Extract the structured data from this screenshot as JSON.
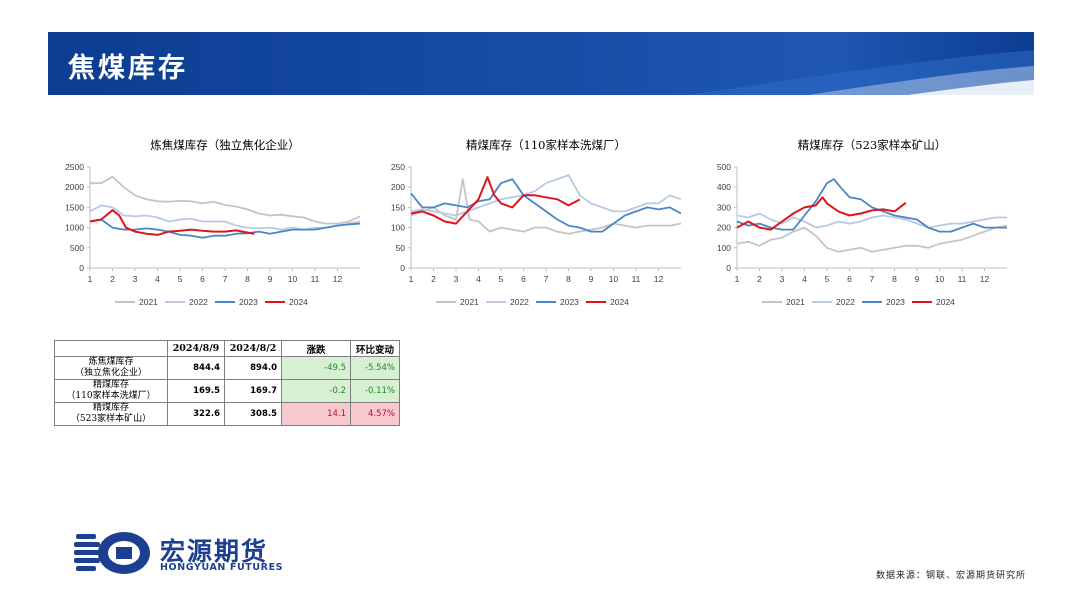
{
  "header": {
    "title": "焦煤库存",
    "banner_color": "#0b3d91"
  },
  "colors": {
    "2021": "#c4c4c4",
    "2022": "#b8c9e6",
    "2023": "#4a86c5",
    "2024": "#e0141e"
  },
  "chart_data": [
    {
      "type": "line",
      "title": "炼焦煤库存（独立焦化企业）",
      "x_ticks": [
        "1",
        "2",
        "3",
        "4",
        "5",
        "6",
        "7",
        "8",
        "9",
        "10",
        "11",
        "12"
      ],
      "y_ticks": [
        "0",
        "500",
        "1000",
        "1500",
        "2000",
        "2500"
      ],
      "ylim": [
        0,
        2500
      ],
      "xlim": [
        1,
        13
      ],
      "legend_position": "bottom",
      "series": [
        {
          "name": "2021",
          "color": "#c4c4c4",
          "x": [
            1,
            1.5,
            2,
            2.5,
            3,
            3.5,
            4,
            4.5,
            5,
            5.5,
            6,
            6.5,
            7,
            7.5,
            8,
            8.5,
            9,
            9.5,
            10,
            10.5,
            11,
            11.5,
            12,
            12.5,
            13
          ],
          "y": [
            2100,
            2100,
            2260,
            2000,
            1800,
            1700,
            1650,
            1640,
            1660,
            1650,
            1600,
            1640,
            1560,
            1520,
            1450,
            1350,
            1300,
            1320,
            1280,
            1250,
            1150,
            1100,
            1100,
            1150,
            1280
          ]
        },
        {
          "name": "2022",
          "color": "#b8c9e6",
          "x": [
            1,
            1.5,
            2,
            2.5,
            3,
            3.5,
            4,
            4.5,
            5,
            5.5,
            6,
            6.5,
            7,
            7.5,
            8,
            8.5,
            9,
            9.5,
            10,
            10.5,
            11,
            11.5,
            12,
            12.5,
            13
          ],
          "y": [
            1400,
            1550,
            1500,
            1300,
            1280,
            1300,
            1250,
            1150,
            1200,
            1220,
            1150,
            1150,
            1150,
            1050,
            1000,
            980,
            1000,
            950,
            1000,
            950,
            1000,
            1000,
            1050,
            1100,
            1150
          ]
        },
        {
          "name": "2023",
          "color": "#4a86c5",
          "x": [
            1,
            1.5,
            2,
            2.5,
            3,
            3.5,
            4,
            4.5,
            5,
            5.5,
            6,
            6.5,
            7,
            7.5,
            8,
            8.5,
            9,
            9.5,
            10,
            10.5,
            11,
            11.5,
            12,
            12.5,
            13
          ],
          "y": [
            1150,
            1200,
            1000,
            950,
            950,
            980,
            950,
            900,
            820,
            800,
            750,
            800,
            800,
            850,
            860,
            900,
            850,
            900,
            950,
            950,
            950,
            1000,
            1050,
            1080,
            1100
          ]
        },
        {
          "name": "2024",
          "color": "#e0141e",
          "x": [
            1,
            1.5,
            2,
            2.3,
            2.6,
            3,
            3.5,
            4,
            4.5,
            5,
            5.5,
            6,
            6.5,
            7,
            7.5,
            8.3
          ],
          "y": [
            1150,
            1200,
            1430,
            1300,
            1000,
            900,
            850,
            820,
            900,
            920,
            950,
            920,
            900,
            900,
            930,
            844.4
          ]
        }
      ]
    },
    {
      "type": "line",
      "title": "精煤库存（110家样本洗煤厂）",
      "x_ticks": [
        "1",
        "2",
        "3",
        "4",
        "5",
        "6",
        "7",
        "8",
        "9",
        "10",
        "11",
        "12"
      ],
      "y_ticks": [
        "0",
        "50",
        "100",
        "150",
        "200",
        "250"
      ],
      "ylim": [
        0,
        250
      ],
      "xlim": [
        1,
        13
      ],
      "legend_position": "bottom",
      "series": [
        {
          "name": "2021",
          "color": "#c4c4c4",
          "x": [
            1,
            1.5,
            2,
            2.5,
            3,
            3.3,
            3.6,
            4,
            4.5,
            5,
            5.5,
            6,
            6.5,
            7,
            7.5,
            8,
            8.5,
            9,
            9.5,
            10,
            10.5,
            11,
            11.5,
            12,
            12.5,
            13
          ],
          "y": [
            130,
            140,
            150,
            130,
            120,
            220,
            120,
            115,
            90,
            100,
            95,
            90,
            100,
            100,
            90,
            85,
            90,
            95,
            100,
            110,
            105,
            100,
            105,
            105,
            105,
            110
          ]
        },
        {
          "name": "2022",
          "color": "#b8c9e6",
          "x": [
            1,
            1.5,
            2,
            2.5,
            3,
            3.5,
            4,
            4.5,
            5,
            5.5,
            6,
            6.5,
            7,
            7.5,
            8,
            8.5,
            9,
            9.5,
            10,
            10.5,
            11,
            11.5,
            12,
            12.5,
            13
          ],
          "y": [
            140,
            145,
            140,
            135,
            130,
            140,
            150,
            160,
            170,
            175,
            180,
            190,
            210,
            220,
            230,
            180,
            160,
            150,
            140,
            140,
            150,
            160,
            160,
            180,
            170
          ]
        },
        {
          "name": "2023",
          "color": "#4a86c5",
          "x": [
            1,
            1.5,
            2,
            2.5,
            3,
            3.5,
            4,
            4.5,
            5,
            5.5,
            6,
            6.5,
            7,
            7.5,
            8,
            8.5,
            9,
            9.5,
            10,
            10.5,
            11,
            11.5,
            12,
            12.5,
            13
          ],
          "y": [
            185,
            150,
            150,
            160,
            155,
            150,
            165,
            170,
            210,
            220,
            180,
            160,
            140,
            120,
            105,
            100,
            90,
            90,
            110,
            130,
            140,
            150,
            145,
            150,
            135
          ]
        },
        {
          "name": "2024",
          "color": "#e0141e",
          "x": [
            1,
            1.5,
            2,
            2.5,
            3,
            3.5,
            4,
            4.4,
            4.7,
            5,
            5.5,
            6,
            6.5,
            7,
            7.5,
            8,
            8.5
          ],
          "y": [
            135,
            140,
            130,
            115,
            110,
            140,
            170,
            225,
            180,
            160,
            150,
            180,
            180,
            175,
            170,
            155,
            169.5
          ]
        }
      ]
    },
    {
      "type": "line",
      "title": "精煤库存（523家样本矿山）",
      "x_ticks": [
        "1",
        "2",
        "3",
        "4",
        "5",
        "6",
        "7",
        "8",
        "9",
        "10",
        "11",
        "12"
      ],
      "y_ticks": [
        "0",
        "100",
        "200",
        "300",
        "400",
        "500"
      ],
      "ylim": [
        0,
        500
      ],
      "xlim": [
        1,
        13
      ],
      "legend_position": "bottom",
      "series": [
        {
          "name": "2021",
          "color": "#c4c4c4",
          "x": [
            1,
            1.5,
            2,
            2.5,
            3,
            3.5,
            4,
            4.5,
            5,
            5.5,
            6,
            6.5,
            7,
            7.5,
            8,
            8.5,
            9,
            9.5,
            10,
            10.5,
            11,
            11.5,
            12,
            12.5,
            13
          ],
          "y": [
            120,
            130,
            110,
            140,
            150,
            180,
            200,
            160,
            100,
            80,
            90,
            100,
            80,
            90,
            100,
            110,
            110,
            100,
            120,
            130,
            140,
            160,
            180,
            200,
            210
          ]
        },
        {
          "name": "2022",
          "color": "#b8c9e6",
          "x": [
            1,
            1.5,
            2,
            2.5,
            3,
            3.5,
            4,
            4.5,
            5,
            5.5,
            6,
            6.5,
            7,
            7.5,
            8,
            8.5,
            9,
            9.5,
            10,
            10.5,
            11,
            11.5,
            12,
            12.5,
            13
          ],
          "y": [
            260,
            250,
            270,
            240,
            220,
            250,
            230,
            200,
            210,
            230,
            220,
            230,
            250,
            260,
            250,
            240,
            220,
            200,
            210,
            220,
            220,
            230,
            240,
            250,
            250
          ]
        },
        {
          "name": "2023",
          "color": "#4a86c5",
          "x": [
            1,
            1.5,
            2,
            2.5,
            3,
            3.5,
            4,
            4.5,
            5,
            5.3,
            5.6,
            6,
            6.5,
            7,
            7.5,
            8,
            8.5,
            9,
            9.5,
            10,
            10.5,
            11,
            11.5,
            12,
            12.5,
            13
          ],
          "y": [
            230,
            210,
            220,
            200,
            190,
            190,
            260,
            330,
            420,
            440,
            400,
            350,
            340,
            300,
            280,
            260,
            250,
            240,
            200,
            180,
            180,
            200,
            220,
            200,
            200,
            200
          ]
        },
        {
          "name": "2024",
          "color": "#e0141e",
          "x": [
            1,
            1.5,
            2,
            2.5,
            3,
            3.5,
            4,
            4.5,
            4.8,
            5,
            5.5,
            6,
            6.5,
            7,
            7.5,
            8,
            8.5
          ],
          "y": [
            200,
            230,
            200,
            190,
            230,
            270,
            300,
            310,
            350,
            320,
            280,
            260,
            270,
            285,
            290,
            280,
            322.6
          ]
        }
      ]
    }
  ],
  "table": {
    "headers": [
      "2024/8/9",
      "2024/8/2",
      "涨跌",
      "环比变动"
    ],
    "rows": [
      {
        "label_line1": "炼焦煤库存",
        "label_line2": "（独立焦化企业）",
        "v1": "844.4",
        "v2": "894.0",
        "chg": "-49.5",
        "pct": "-5.54%",
        "dir": "down"
      },
      {
        "label_line1": "精煤库存",
        "label_line2": "（110家样本洗煤厂）",
        "v1": "169.5",
        "v2": "169.7",
        "chg": "-0.2",
        "pct": "-0.11%",
        "dir": "down"
      },
      {
        "label_line1": "精煤库存",
        "label_line2": "（523家样本矿山）",
        "v1": "322.6",
        "v2": "308.5",
        "chg": "14.1",
        "pct": "4.57%",
        "dir": "up"
      }
    ]
  },
  "logo": {
    "name_cn": "宏源期货",
    "name_en": "HONGYUAN FUTURES"
  },
  "source": "数据来源：钢联、宏源期货研究所"
}
